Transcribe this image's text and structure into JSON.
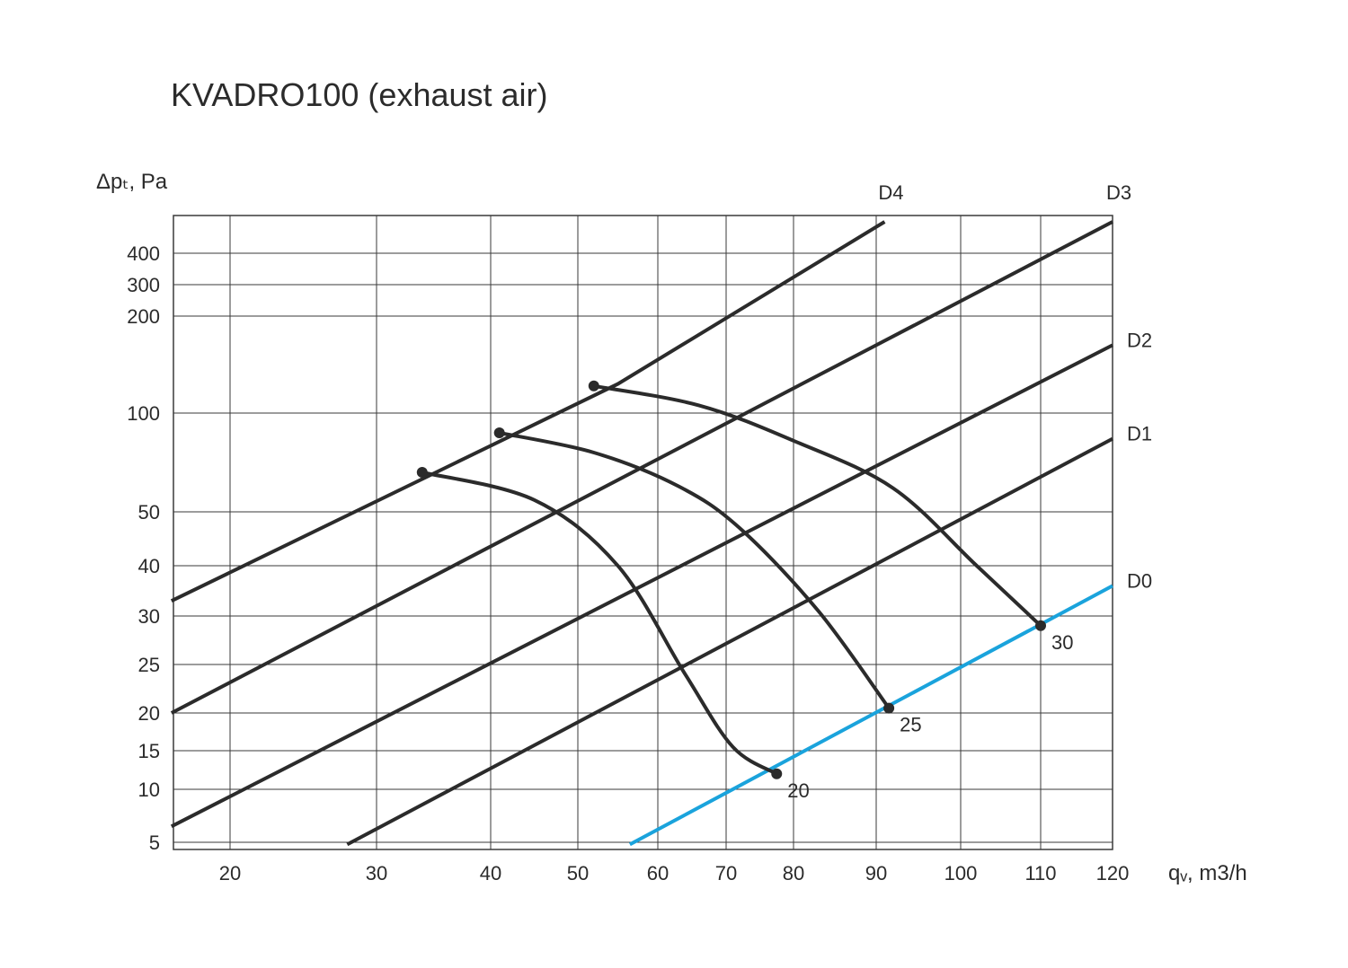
{
  "chart_data": {
    "type": "line",
    "title": "KVADRO100 (exhaust air)",
    "ylabel": "Δpₜ, Pa",
    "xlabel": "qᵥ, m3/h",
    "y_ticks": [
      "400",
      "300",
      "200",
      "100",
      "50",
      "40",
      "30",
      "25",
      "20",
      "15",
      "10",
      "5"
    ],
    "x_ticks": [
      "20",
      "30",
      "40",
      "50",
      "60",
      "70",
      "80",
      "90",
      "100",
      "110",
      "120"
    ],
    "grid": true,
    "damper_lines": [
      {
        "name": "D4",
        "color": "#2b2b2b",
        "points": [
          [
            16,
            33
          ],
          [
            55,
            130
          ],
          [
            91,
            500
          ]
        ]
      },
      {
        "name": "D3",
        "color": "#2b2b2b",
        "points": [
          [
            16,
            20
          ],
          [
            120,
            500
          ]
        ]
      },
      {
        "name": "D2",
        "color": "#2b2b2b",
        "points": [
          [
            16,
            6.5
          ],
          [
            120,
            170
          ]
        ]
      },
      {
        "name": "D1",
        "color": "#2b2b2b",
        "points": [
          [
            28,
            4.8
          ],
          [
            120,
            87
          ]
        ]
      },
      {
        "name": "D0",
        "color": "#1aa3dc",
        "points": [
          [
            56.5,
            4.8
          ],
          [
            120,
            36
          ]
        ]
      }
    ],
    "speed_curves": [
      {
        "name": "20",
        "color": "#2b2b2b",
        "points": [
          [
            34,
            70
          ],
          [
            45,
            56
          ],
          [
            55,
            40
          ],
          [
            64,
            24
          ],
          [
            71,
            15.5
          ],
          [
            77.5,
            12
          ]
        ]
      },
      {
        "name": "25",
        "color": "#2b2b2b",
        "points": [
          [
            41,
            90
          ],
          [
            52,
            80
          ],
          [
            63,
            63
          ],
          [
            72,
            47
          ],
          [
            83,
            31
          ],
          [
            91.5,
            20.5
          ]
        ]
      },
      {
        "name": "30",
        "color": "#2b2b2b",
        "points": [
          [
            52,
            128
          ],
          [
            66,
            108
          ],
          [
            80,
            86
          ],
          [
            92,
            62
          ],
          [
            102,
            40
          ],
          [
            110,
            29
          ]
        ]
      }
    ],
    "markers": [
      {
        "name": "",
        "x": 34,
        "y": 70
      },
      {
        "name": "",
        "x": 41,
        "y": 90
      },
      {
        "name": "",
        "x": 52,
        "y": 128
      },
      {
        "name": "20",
        "x": 77.5,
        "y": 12
      },
      {
        "name": "25",
        "x": 91.5,
        "y": 20.5
      },
      {
        "name": "30",
        "x": 110,
        "y": 29
      }
    ]
  }
}
